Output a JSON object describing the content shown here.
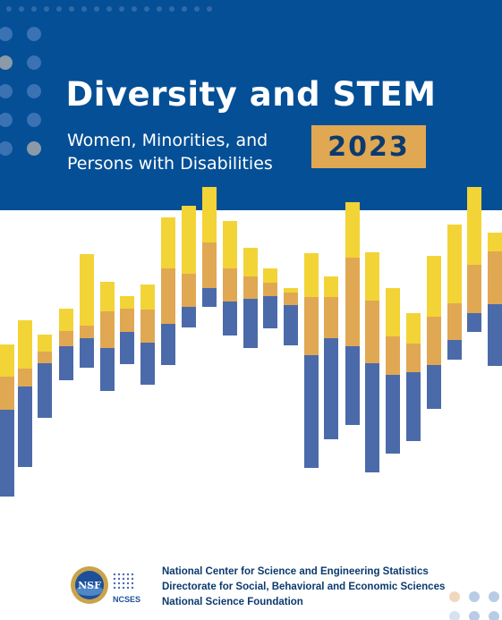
{
  "cover": {
    "title": "Diversity and STEM",
    "subtitle_line1": "Women, Minorities, and",
    "subtitle_line2": "Persons with Disabilities",
    "year": "2023"
  },
  "colors": {
    "banner": "#054f96",
    "yellow": "#f2d437",
    "orange": "#e0a853",
    "blue": "#4b6aaa",
    "year_box": "#e0a853"
  },
  "footer": {
    "logo_nsf_label": "NSF",
    "logo_ncses_label": "NCSES",
    "lines": [
      "National Center for Science and Engineering Statistics",
      "Directorate for Social, Behavioral and Economic Sciences",
      "National Science Foundation"
    ]
  }
}
